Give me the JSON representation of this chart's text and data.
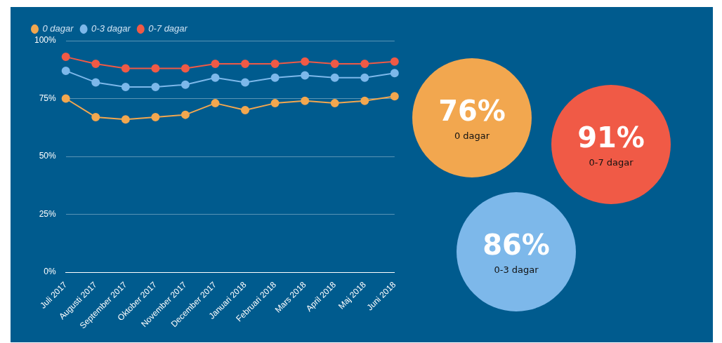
{
  "chart_data": {
    "type": "line",
    "categories": [
      "Juli 2017",
      "Augusti 2017",
      "September 2017",
      "Oktober 2017",
      "November 2017",
      "December 2017",
      "Januari 2018",
      "Februari 2018",
      "Mars 2018",
      "April 2018",
      "Maj 2018",
      "Juni 2018"
    ],
    "series": [
      {
        "name": "0 dagar",
        "color": "#f2a74f",
        "values": [
          75,
          67,
          66,
          67,
          68,
          73,
          70,
          73,
          74,
          73,
          74,
          76
        ]
      },
      {
        "name": "0-3 dagar",
        "color": "#7db8ea",
        "values": [
          87,
          82,
          80,
          80,
          81,
          84,
          82,
          84,
          85,
          84,
          84,
          86
        ]
      },
      {
        "name": "0-7 dagar",
        "color": "#f05a46",
        "values": [
          93,
          90,
          88,
          88,
          88,
          90,
          90,
          90,
          91,
          90,
          90,
          91
        ]
      }
    ],
    "ylim": [
      0,
      100
    ],
    "yticks": [
      {
        "value": 0,
        "label": "0%"
      },
      {
        "value": 25,
        "label": "25%"
      },
      {
        "value": 50,
        "label": "50%"
      },
      {
        "value": 75,
        "label": "75%"
      },
      {
        "value": 100,
        "label": "100%"
      }
    ],
    "grid": "y",
    "legend": "top left",
    "marker": "circle",
    "line_style": "solid",
    "annotations": [
      "76%",
      "0 dagar",
      "91%",
      "0-7 dagar",
      "86%",
      "0-3 dagar"
    ]
  }
}
